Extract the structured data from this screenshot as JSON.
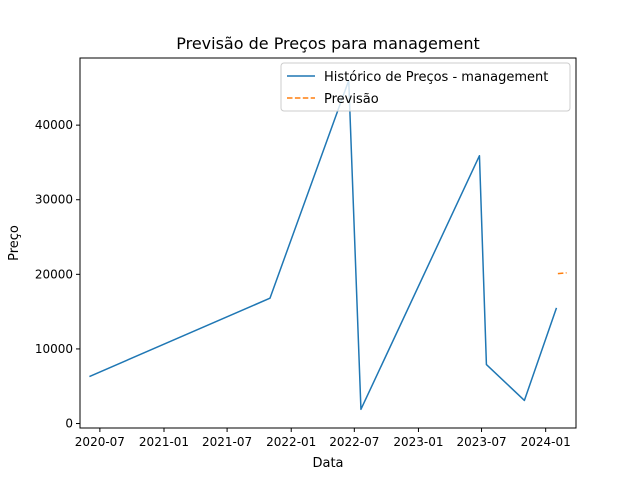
{
  "chart_data": {
    "type": "line",
    "title": "Previsão de Preços para management",
    "xlabel": "Data",
    "ylabel": "Preço",
    "x_ticks": [
      "2020-07",
      "2021-01",
      "2021-07",
      "2022-01",
      "2022-07",
      "2023-01",
      "2023-07",
      "2024-01"
    ],
    "y_ticks": [
      0,
      10000,
      20000,
      30000,
      40000
    ],
    "xlim": [
      "2020-05-05",
      "2024-03-28"
    ],
    "ylim": [
      -600,
      49000
    ],
    "grid": false,
    "legend_position": "top-right",
    "series": [
      {
        "name": "Histórico de Preços - management",
        "color": "#1f77b4",
        "style": "solid",
        "points": [
          {
            "x": "2020-06-01",
            "y": 6300
          },
          {
            "x": "2021-11-01",
            "y": 16800
          },
          {
            "x": "2022-06-15",
            "y": 46000
          },
          {
            "x": "2022-07-20",
            "y": 1900
          },
          {
            "x": "2023-06-25",
            "y": 35900
          },
          {
            "x": "2023-07-15",
            "y": 7900
          },
          {
            "x": "2023-11-01",
            "y": 3100
          },
          {
            "x": "2024-02-01",
            "y": 15500
          }
        ]
      },
      {
        "name": "Previsão",
        "color": "#ff7f0e",
        "style": "dashed",
        "points": [
          {
            "x": "2024-02-05",
            "y": 20100
          },
          {
            "x": "2024-03-01",
            "y": 20200
          }
        ]
      }
    ]
  }
}
